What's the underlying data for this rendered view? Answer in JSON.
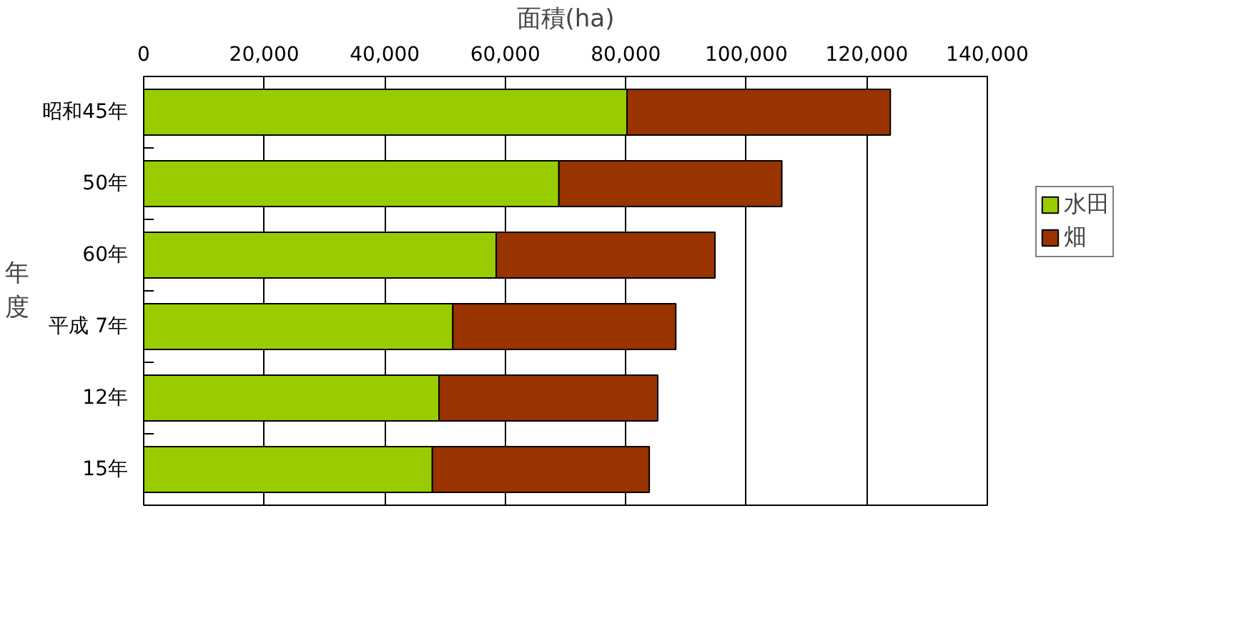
{
  "chart_data": {
    "type": "bar",
    "orientation": "horizontal",
    "stacked": true,
    "xlabel": "面積(ha)",
    "ylabel": "年度",
    "categories": [
      "昭和45年",
      "50年",
      "60年",
      "平成 7年",
      "12年",
      "15年"
    ],
    "series": [
      {
        "name": "水田",
        "color": "#99cc00",
        "values": [
          80200,
          68900,
          58500,
          51300,
          49000,
          47900
        ]
      },
      {
        "name": "畑",
        "color": "#993300",
        "values": [
          43700,
          37000,
          36300,
          37000,
          36300,
          36000
        ]
      }
    ],
    "xlim": [
      0,
      140000
    ],
    "xticks": [
      0,
      {
        "value": 20000,
        "label": "20,000"
      },
      {
        "value": 40000,
        "label": "40,000"
      },
      {
        "value": 60000,
        "label": "60,000"
      },
      {
        "value": 80000,
        "label": "80,000"
      },
      {
        "value": 100000,
        "label": "100,000"
      },
      {
        "value": 120000,
        "label": "120,000"
      },
      {
        "value": 140000,
        "label": "140,000"
      }
    ],
    "grid": "x",
    "legend": "right"
  }
}
